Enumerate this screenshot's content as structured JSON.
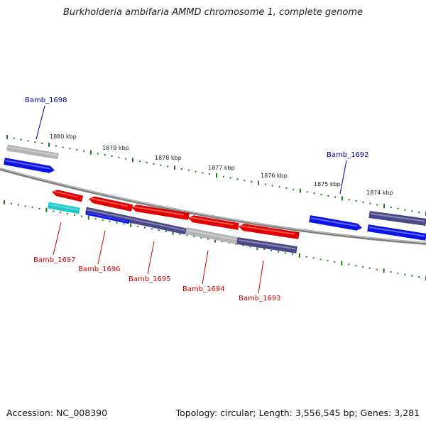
{
  "title": "Burkholderia ambifaria AMMD chromosome 1, complete genome",
  "footer": {
    "accession": "Accession: NC_008390",
    "summary": "Topology: circular; Length: 3,556,545 bp; Genes: 3,281"
  },
  "ticks": [
    {
      "label": "1880 kbp"
    },
    {
      "label": "1879 kbp"
    },
    {
      "label": "1878 kbp"
    },
    {
      "label": "1877 kbp"
    },
    {
      "label": "1876 kbp"
    },
    {
      "label": "1875 kbp"
    },
    {
      "label": "1874 kbp"
    }
  ],
  "genes": [
    {
      "label": "Bamb_1698",
      "strand": "+"
    },
    {
      "label": "Bamb_1697",
      "strand": "-"
    },
    {
      "label": "Bamb_1696",
      "strand": "-"
    },
    {
      "label": "Bamb_1695",
      "strand": "-"
    },
    {
      "label": "Bamb_1694",
      "strand": "-"
    },
    {
      "label": "Bamb_1693",
      "strand": "-"
    },
    {
      "label": "Bamb_1692",
      "strand": "+"
    }
  ],
  "colors": {
    "forward_label": "#0000aa",
    "reverse_label": "#cc0000",
    "tick": "#1a7a1a",
    "backbone": "#808080",
    "red": "#e00000",
    "blue": "#0a14e6",
    "navy": "#4a4888",
    "gray": "#b4b4b4",
    "cyan": "#20c8c8"
  }
}
